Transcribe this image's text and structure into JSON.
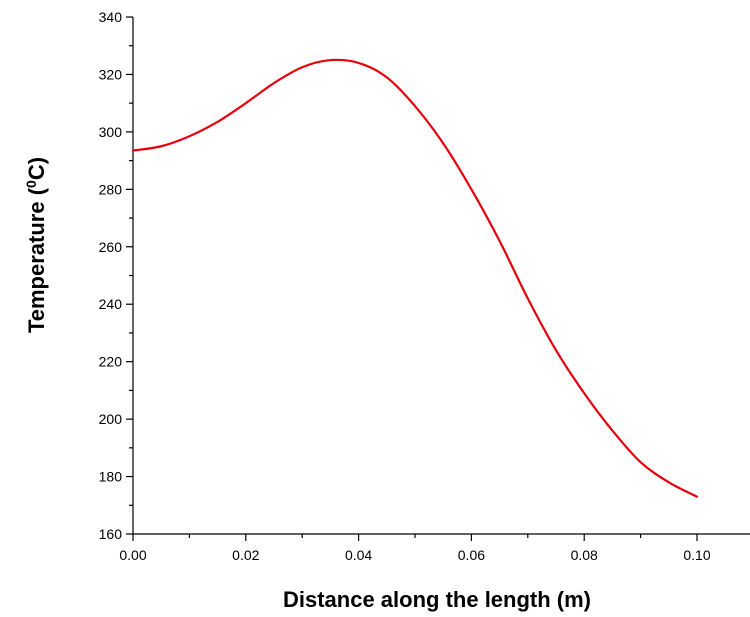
{
  "chart_data": {
    "type": "line",
    "xlabel": "Distance along the length (m)",
    "ylabel_main": "Temperature (",
    "ylabel_sup": "0",
    "ylabel_end": "C)",
    "xlim": [
      0.0,
      0.1
    ],
    "ylim": [
      160,
      340
    ],
    "x_ticks": [
      0.0,
      0.02,
      0.04,
      0.06,
      0.08,
      0.1
    ],
    "x_tick_labels": [
      "0.00",
      "0.02",
      "0.04",
      "0.06",
      "0.08",
      "0.10"
    ],
    "y_ticks": [
      160,
      180,
      200,
      220,
      240,
      260,
      280,
      300,
      320,
      340
    ],
    "y_tick_labels": [
      "160",
      "180",
      "200",
      "220",
      "240",
      "260",
      "280",
      "300",
      "320",
      "340"
    ],
    "grid": false,
    "series": [
      {
        "color": "#e8000b",
        "x": [
          0.0,
          0.005,
          0.01,
          0.015,
          0.02,
          0.025,
          0.03,
          0.035,
          0.04,
          0.045,
          0.05,
          0.055,
          0.06,
          0.065,
          0.07,
          0.075,
          0.08,
          0.085,
          0.09,
          0.095,
          0.1
        ],
        "y": [
          293.5,
          295.0,
          298.5,
          303.5,
          310.0,
          317.0,
          322.5,
          325.0,
          324.0,
          319.0,
          309.0,
          296.0,
          280.0,
          262.0,
          242.0,
          224.0,
          209.0,
          196.0,
          185.0,
          178.0,
          173.0
        ]
      }
    ]
  }
}
